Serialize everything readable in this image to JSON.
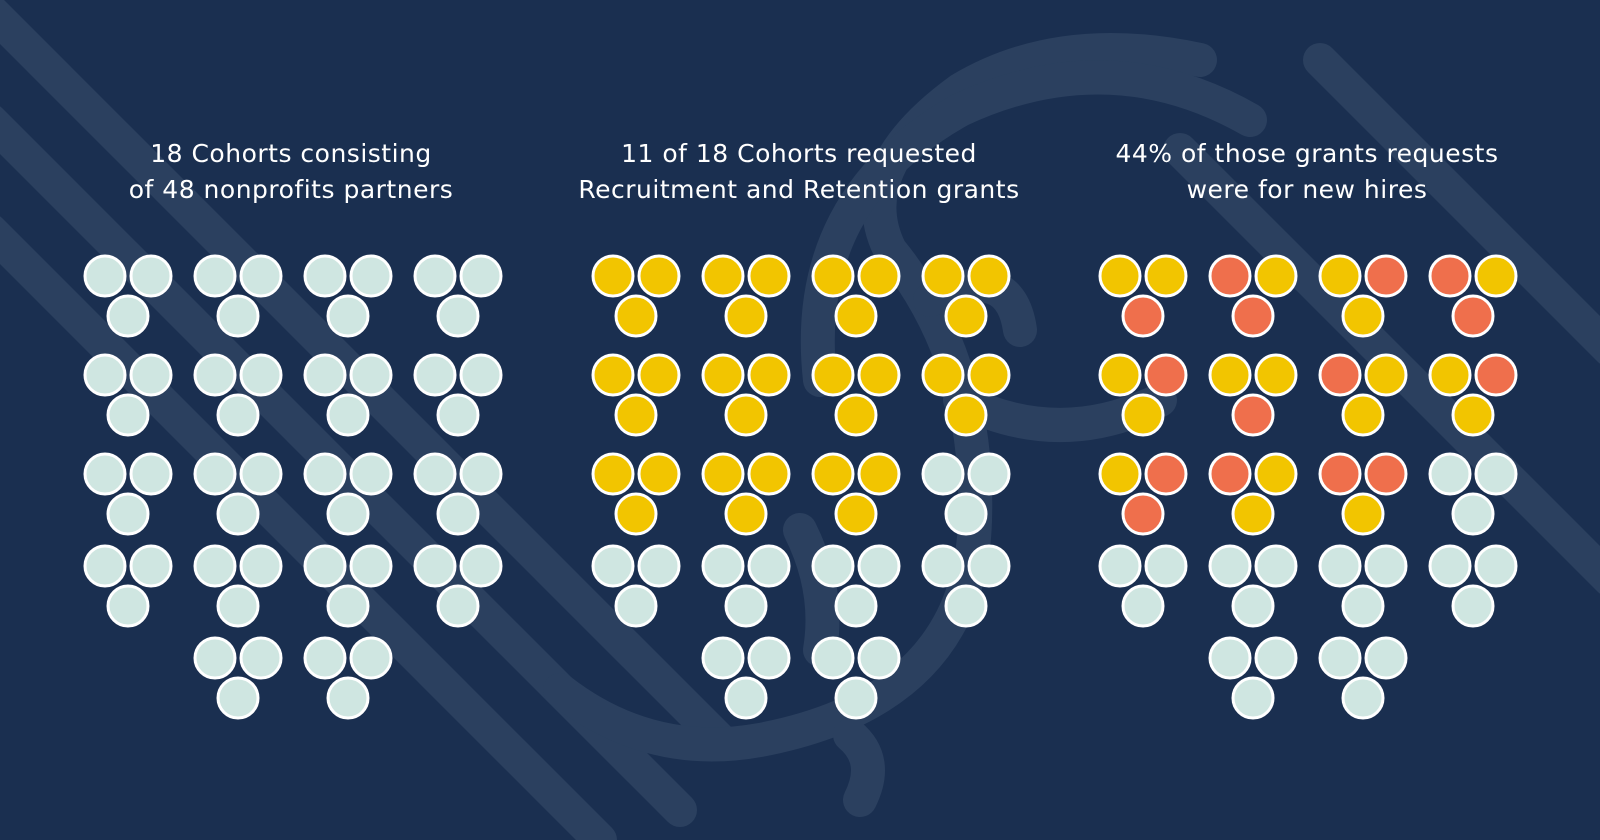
{
  "colors": {
    "background": "#1a2f50",
    "swirl": "#2b405f",
    "light": "#cfe6e1",
    "yellow": "#f2c500",
    "orange": "#ef6f4c",
    "outline": "#ffffff"
  },
  "panels": [
    {
      "title_lines": [
        "18 Cohorts consisting",
        "of 48 nonprofits partners"
      ],
      "cohorts": [
        [
          "light",
          "light",
          "light"
        ],
        [
          "light",
          "light",
          "light"
        ],
        [
          "light",
          "light",
          "light"
        ],
        [
          "light",
          "light",
          "light"
        ],
        [
          "light",
          "light",
          "light"
        ],
        [
          "light",
          "light",
          "light"
        ],
        [
          "light",
          "light",
          "light"
        ],
        [
          "light",
          "light",
          "light"
        ],
        [
          "light",
          "light",
          "light"
        ],
        [
          "light",
          "light",
          "light"
        ],
        [
          "light",
          "light",
          "light"
        ],
        [
          "light",
          "light",
          "light"
        ],
        [
          "light",
          "light",
          "light"
        ],
        [
          "light",
          "light",
          "light"
        ],
        [
          "light",
          "light",
          "light"
        ],
        [
          "light",
          "light",
          "light"
        ],
        [
          "light",
          "light",
          "light"
        ],
        [
          "light",
          "light",
          "light"
        ]
      ]
    },
    {
      "title_lines": [
        "11 of 18 Cohorts requested",
        "Recruitment and Retention grants"
      ],
      "cohorts": [
        [
          "yellow",
          "yellow",
          "yellow"
        ],
        [
          "yellow",
          "yellow",
          "yellow"
        ],
        [
          "yellow",
          "yellow",
          "yellow"
        ],
        [
          "yellow",
          "yellow",
          "yellow"
        ],
        [
          "yellow",
          "yellow",
          "yellow"
        ],
        [
          "yellow",
          "yellow",
          "yellow"
        ],
        [
          "yellow",
          "yellow",
          "yellow"
        ],
        [
          "yellow",
          "yellow",
          "yellow"
        ],
        [
          "yellow",
          "yellow",
          "yellow"
        ],
        [
          "yellow",
          "yellow",
          "yellow"
        ],
        [
          "yellow",
          "yellow",
          "yellow"
        ],
        [
          "light",
          "light",
          "light"
        ],
        [
          "light",
          "light",
          "light"
        ],
        [
          "light",
          "light",
          "light"
        ],
        [
          "light",
          "light",
          "light"
        ],
        [
          "light",
          "light",
          "light"
        ],
        [
          "light",
          "light",
          "light"
        ],
        [
          "light",
          "light",
          "light"
        ]
      ]
    },
    {
      "title_lines": [
        "44% of those grants requests",
        "were for new hires"
      ],
      "cohorts": [
        [
          "yellow",
          "yellow",
          "orange"
        ],
        [
          "orange",
          "yellow",
          "orange"
        ],
        [
          "yellow",
          "orange",
          "yellow"
        ],
        [
          "orange",
          "yellow",
          "orange"
        ],
        [
          "yellow",
          "orange",
          "yellow"
        ],
        [
          "yellow",
          "yellow",
          "orange"
        ],
        [
          "orange",
          "yellow",
          "yellow"
        ],
        [
          "yellow",
          "orange",
          "yellow"
        ],
        [
          "yellow",
          "orange",
          "orange"
        ],
        [
          "orange",
          "yellow",
          "yellow"
        ],
        [
          "orange",
          "orange",
          "yellow"
        ],
        [
          "light",
          "light",
          "light"
        ],
        [
          "light",
          "light",
          "light"
        ],
        [
          "light",
          "light",
          "light"
        ],
        [
          "light",
          "light",
          "light"
        ],
        [
          "light",
          "light",
          "light"
        ],
        [
          "light",
          "light",
          "light"
        ],
        [
          "light",
          "light",
          "light"
        ]
      ]
    }
  ]
}
